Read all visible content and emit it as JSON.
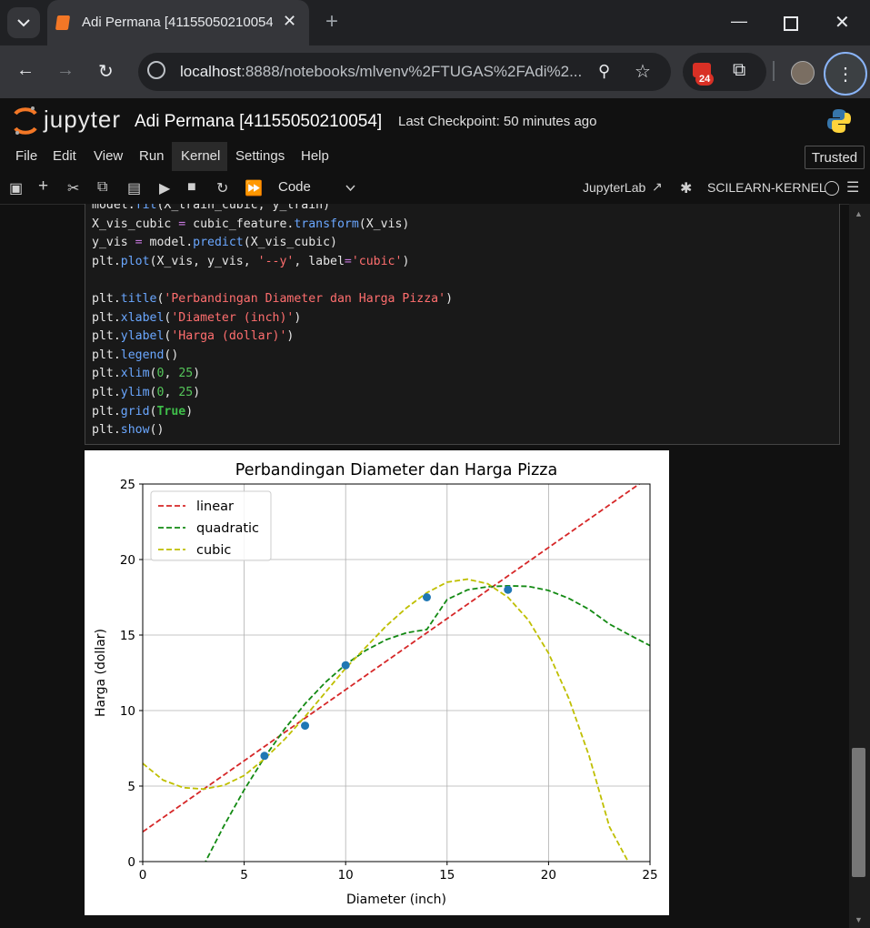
{
  "browser": {
    "tab_title": "Adi Permana [41155050210054]",
    "url_host": "localhost",
    "url_rest": ":8888/notebooks/mlvenv%2FTUGAS%2FAdi%2...",
    "extension_badge": "24"
  },
  "jupyter": {
    "logo_text": "jupyter",
    "notebook_title": "Adi Permana [41155050210054]",
    "checkpoint": "Last Checkpoint: 50 minutes ago",
    "menu": [
      "File",
      "Edit",
      "View",
      "Run",
      "Kernel",
      "Settings",
      "Help"
    ],
    "trusted": "Trusted",
    "cell_type": "Code",
    "jupyterlab_label": "JupyterLab",
    "kernel_name": "SCILEARN-KERNEL"
  },
  "code_lines": [
    "model.fit(X_train_cubic, y_train)",
    "X_vis_cubic = cubic_feature.transform(X_vis)",
    "y_vis = model.predict(X_vis_cubic)",
    "plt.plot(X_vis, y_vis, '--y', label='cubic')",
    "",
    "plt.title('Perbandingan Diameter dan Harga Pizza')",
    "plt.xlabel('Diameter (inch)')",
    "plt.ylabel('Harga (dollar)')",
    "plt.legend()",
    "plt.xlim(0, 25)",
    "plt.ylim(0, 25)",
    "plt.grid(True)",
    "plt.show()"
  ],
  "chart_data": {
    "type": "line",
    "title": "Perbandingan Diameter dan Harga Pizza",
    "xlabel": "Diameter (inch)",
    "ylabel": "Harga (dollar)",
    "xlim": [
      0,
      25
    ],
    "ylim": [
      0,
      25
    ],
    "xticks": [
      0,
      5,
      10,
      15,
      20,
      25
    ],
    "yticks": [
      0,
      5,
      10,
      15,
      20,
      25
    ],
    "grid": true,
    "legend_position": "upper-left",
    "scatter": {
      "x": [
        6,
        8,
        10,
        14,
        18
      ],
      "y": [
        7,
        9,
        13,
        17.5,
        18
      ],
      "color": "#1f77b4"
    },
    "series": [
      {
        "name": "linear",
        "color": "#d62728",
        "x": [
          0,
          25
        ],
        "y": [
          1.97,
          25.5
        ]
      },
      {
        "name": "quadratic",
        "color": "#138a13",
        "x": [
          3,
          4,
          5,
          6,
          7,
          8,
          9,
          10,
          11,
          12,
          13,
          14,
          15,
          16,
          17,
          18,
          19,
          20,
          21,
          22,
          23,
          24,
          25
        ],
        "y": [
          -0.25,
          2.37,
          4.75,
          6.89,
          8.79,
          10.45,
          11.87,
          13.05,
          13.99,
          14.69,
          15.15,
          15.37,
          17.35,
          17.99,
          18.2,
          18.26,
          18.22,
          17.95,
          17.43,
          16.7,
          15.72,
          15.0,
          14.3
        ]
      },
      {
        "name": "cubic",
        "color": "#bfbf00",
        "x": [
          0,
          1,
          2,
          3,
          4,
          5,
          6,
          7,
          8,
          9,
          10,
          11,
          12,
          13,
          14,
          15,
          16,
          17,
          18,
          19,
          20,
          21,
          22,
          23,
          24
        ],
        "y": [
          6.5,
          5.4,
          4.9,
          4.8,
          5.05,
          5.7,
          6.8,
          8.1,
          9.6,
          11.2,
          12.8,
          14.2,
          15.6,
          16.8,
          17.8,
          18.5,
          18.7,
          18.4,
          17.5,
          16.0,
          13.8,
          10.8,
          7.0,
          2.3,
          -0.2
        ]
      }
    ]
  }
}
